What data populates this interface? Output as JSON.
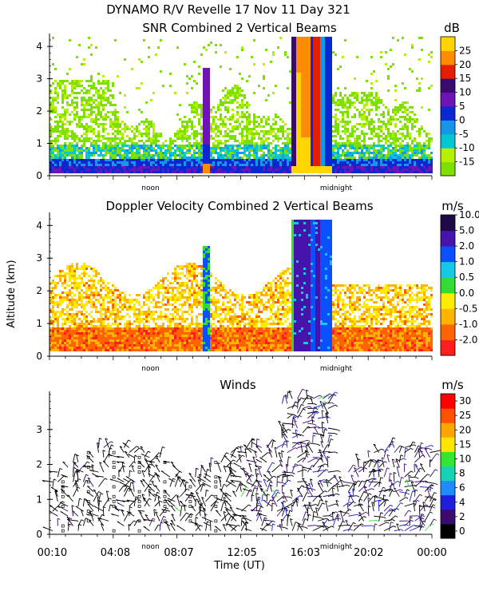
{
  "figure": {
    "title_line1": "DYNAMO R/V Revelle  17 Nov 11 Day 321",
    "ylabel": "Altitude (km)",
    "xlabel": "Time (UT)",
    "x_ticks": [
      "00:10",
      "04:08",
      "08:07",
      "12:05",
      "16:03",
      "20:02",
      "00:00"
    ],
    "noon_label": "noon",
    "midnight_label": "midnight"
  },
  "colors": {
    "snr": [
      "#7ee000",
      "#b4f000",
      "#00c8d2",
      "#1696e6",
      "#0a28d2",
      "#6e14b4",
      "#3c0a6e",
      "#e61e00",
      "#ff8c00",
      "#ffd400"
    ],
    "vel": [
      "#ff1e1e",
      "#ff6400",
      "#ffb400",
      "#ffeb00",
      "#32dc32",
      "#14c8e6",
      "#0a50ff",
      "#4614aa",
      "#1e0a46"
    ],
    "wind": [
      "#000000",
      "#3c0a6e",
      "#1e1edc",
      "#1e8cff",
      "#14d2b4",
      "#32e632",
      "#ffe600",
      "#ffa500",
      "#ff5000",
      "#ff0000"
    ]
  },
  "chart_data": [
    {
      "type": "heatmap",
      "title": "SNR Combined 2 Vertical Beams",
      "ylabel": "Altitude (km)",
      "ylim": [
        0,
        4.3
      ],
      "yticks": [
        "0",
        "1",
        "2",
        "3",
        "4"
      ],
      "colorbar_unit": "dB",
      "colorbar_labels": [
        "-15",
        "-10",
        "-5",
        "0",
        "5",
        "10",
        "15",
        "20",
        "25"
      ],
      "features": [
        {
          "from_hour": 15.1,
          "to_hour": 17.6,
          "max_altitude_km": 4.3,
          "note": "strong echo / rain column"
        },
        {
          "from_hour": 9.6,
          "to_hour": 10.0,
          "max_altitude_km": 3.4,
          "note": "narrow convective column"
        }
      ]
    },
    {
      "type": "heatmap",
      "title": "Doppler Velocity Combined 2 Vertical Beams",
      "ylabel": "Altitude (km)",
      "ylim": [
        0,
        4.3
      ],
      "yticks": [
        "0",
        "1",
        "2",
        "3",
        "4"
      ],
      "colorbar_unit": "m/s",
      "colorbar_labels": [
        "-2.0",
        "-1.0",
        "-0.5",
        "0.0",
        "0.5",
        "1.0",
        "2.0",
        "5.0",
        "10.0"
      ],
      "features": [
        {
          "from_hour": 15.1,
          "to_hour": 17.6,
          "max_altitude_km": 4.2,
          "note": "downward velocity (rain)"
        }
      ]
    },
    {
      "type": "scatter",
      "title": "Winds",
      "ylabel": "Altitude (km)",
      "ylim": [
        0,
        4
      ],
      "yticks": [
        "0",
        "1",
        "2",
        "3"
      ],
      "colorbar_unit": "m/s",
      "colorbar_labels": [
        "0",
        "2",
        "4",
        "6",
        "8",
        "10",
        "15",
        "20",
        "25",
        "30"
      ],
      "x_range_hours": [
        0.17,
        24.0
      ],
      "note": "wind barbs at hourly-to-subhourly intervals, speeds mostly 0-6 m/s"
    }
  ]
}
